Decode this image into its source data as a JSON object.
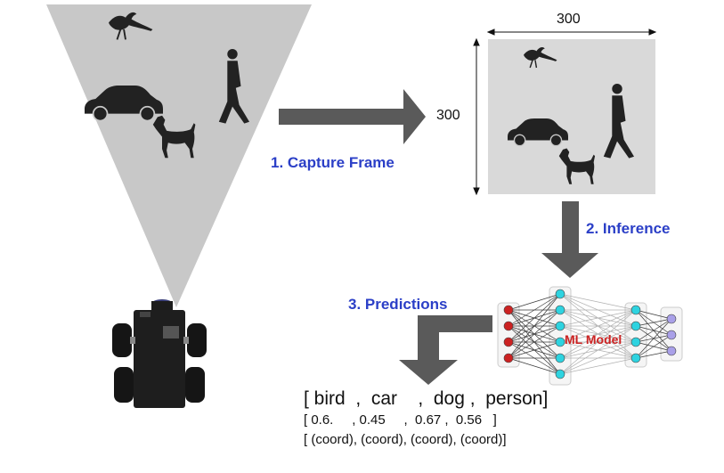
{
  "steps": {
    "capture": "1. Capture Frame",
    "inference": "2. Inference",
    "predictions": "3. Predictions"
  },
  "frame": {
    "width_label": "300",
    "height_label": "300"
  },
  "model": {
    "label": "ML Model"
  },
  "output": {
    "labels_line": "[ bird  ,  car    ,  dog ,  person]",
    "scores_line": "[ 0.6.     , 0.45     ,  0.67 ,  0.56   ]",
    "boxes_line": "[ (coord), (coord), (coord), (coord)]"
  },
  "colors": {
    "step_text": "#2b3fc7",
    "model_text": "#cc2222",
    "arrow": "#5a5a5a",
    "cone": "#c8c8c8",
    "frame_bg": "#d9d9d9",
    "input_node": "#cc2222",
    "hidden_node": "#2ed3e0",
    "output_node": "#a9a0e8"
  },
  "icons": [
    "bird-icon",
    "car-icon",
    "dog-icon",
    "person-icon",
    "robot-icon"
  ]
}
